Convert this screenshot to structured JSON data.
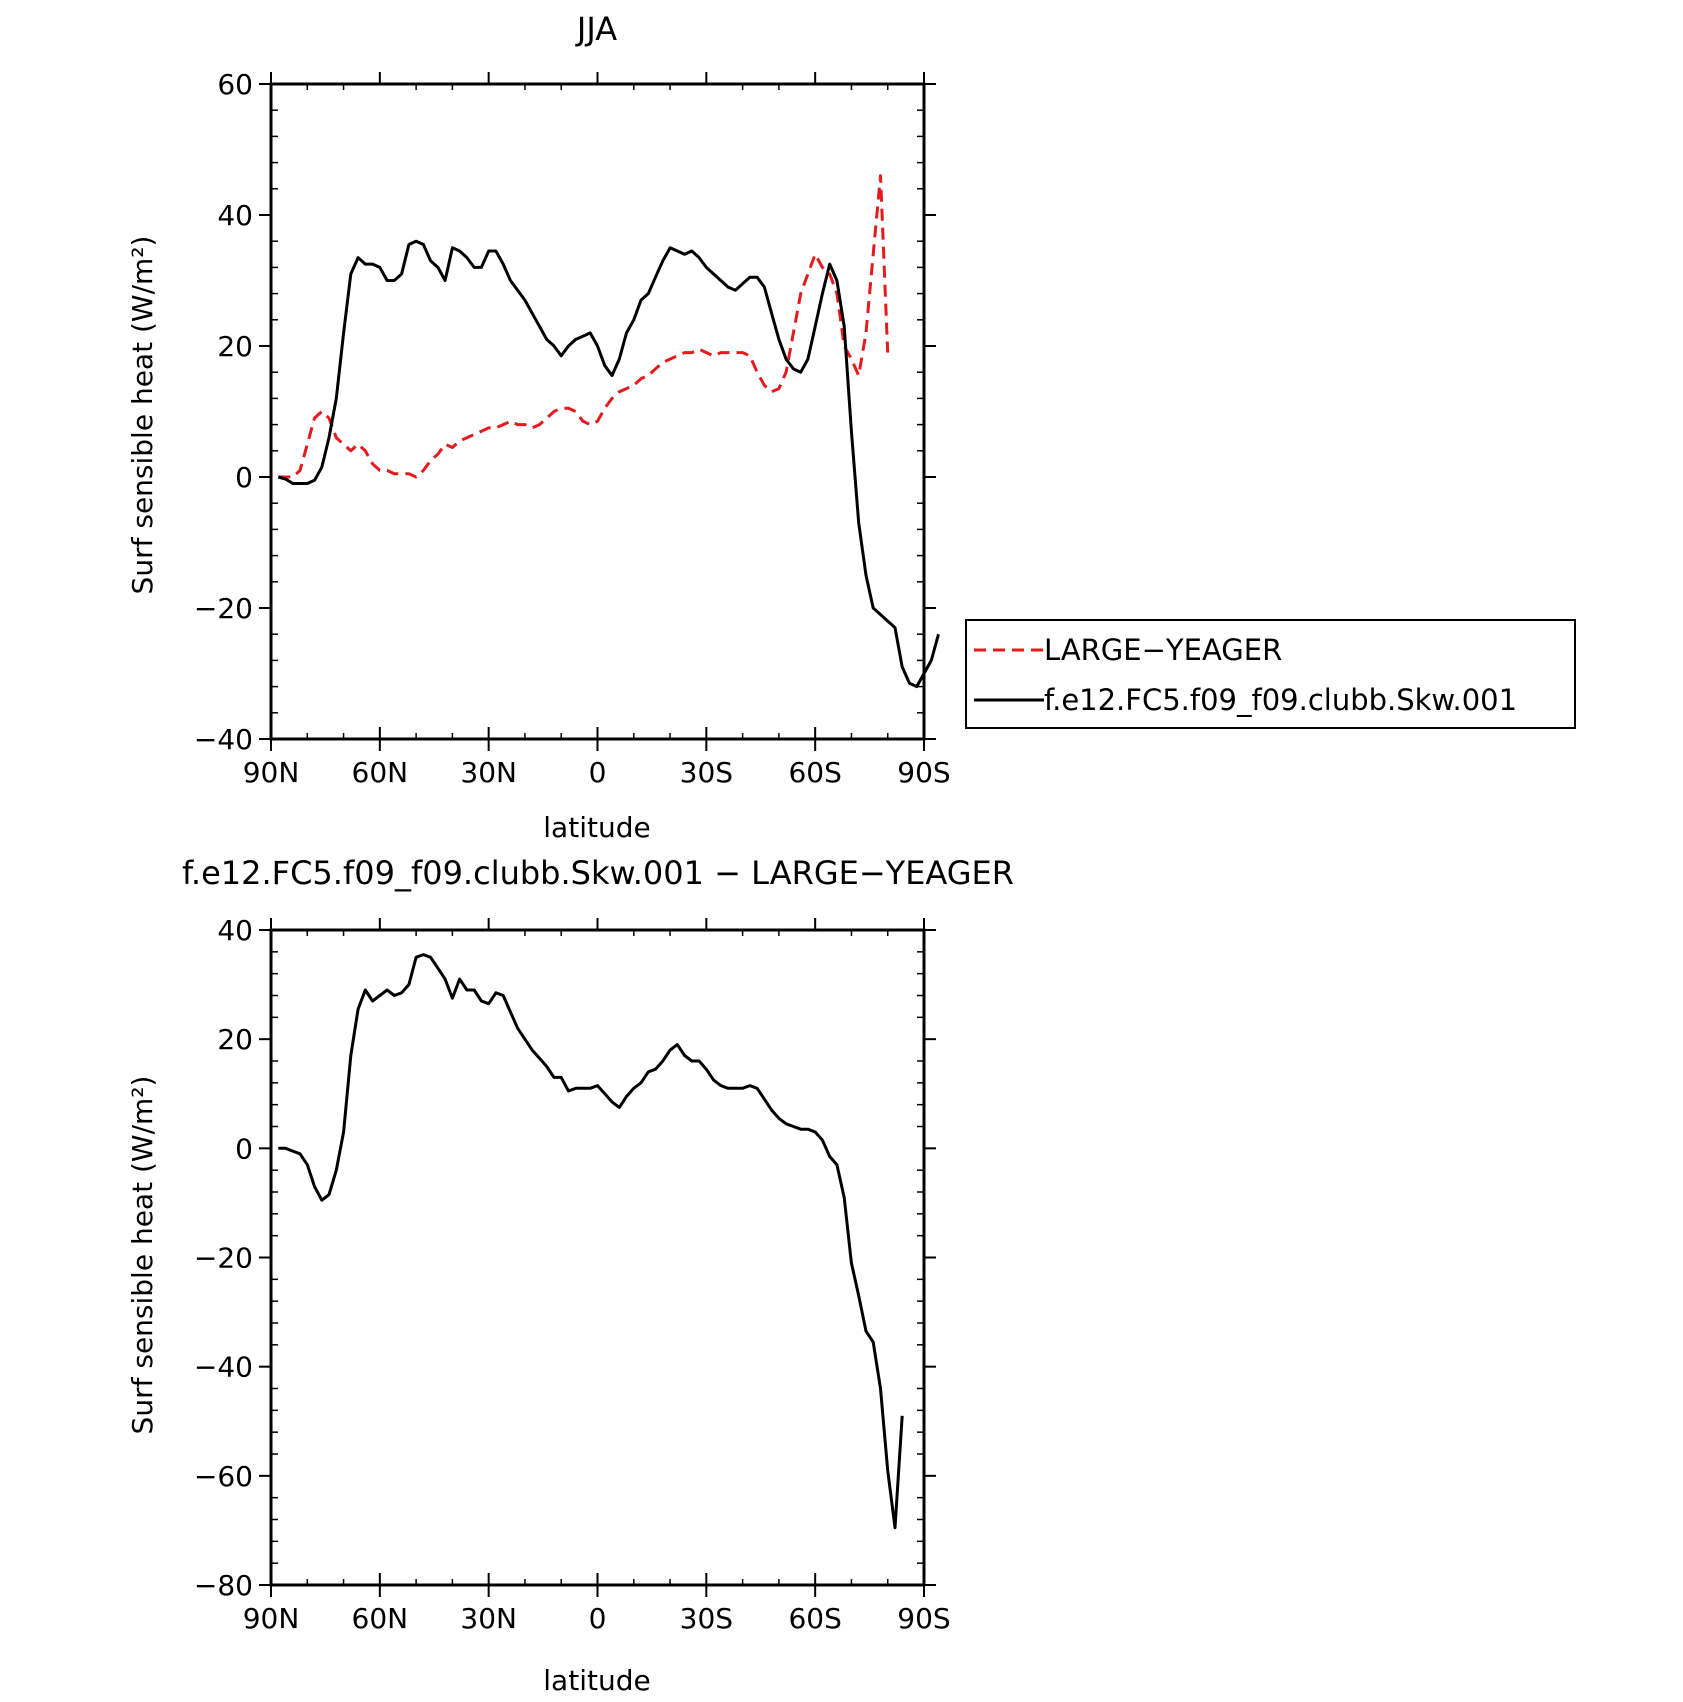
{
  "chart_data": [
    {
      "type": "line",
      "title": "JJA",
      "xlabel": "latitude",
      "ylabel": "Surf sensible heat (W/m²)",
      "xlim": [
        90,
        -90
      ],
      "ylim": [
        -40,
        60
      ],
      "xticks": [
        90,
        60,
        30,
        0,
        -30,
        -60,
        -90
      ],
      "xtick_labels": [
        "90N",
        "60N",
        "30N",
        "0",
        "30S",
        "60S",
        "90S"
      ],
      "yticks": [
        -40,
        -20,
        0,
        20,
        40,
        60
      ],
      "ytick_labels": [
        "−40",
        "−20",
        "0",
        "20",
        "40",
        "60"
      ],
      "grid": false,
      "legend_position": "right",
      "series": [
        {
          "name": "LARGE−YEAGER",
          "color": "#e41a1c",
          "dash": true,
          "points": [
            [
              88,
              0
            ],
            [
              86,
              0
            ],
            [
              84,
              0
            ],
            [
              82,
              1
            ],
            [
              80,
              5
            ],
            [
              78,
              9
            ],
            [
              76,
              10
            ],
            [
              74,
              9
            ],
            [
              72,
              6
            ],
            [
              70,
              5
            ],
            [
              68,
              4
            ],
            [
              66,
              5
            ],
            [
              64,
              4
            ],
            [
              62,
              2
            ],
            [
              60,
              1
            ],
            [
              58,
              1
            ],
            [
              56,
              0.5
            ],
            [
              54,
              0.5
            ],
            [
              52,
              0.5
            ],
            [
              50,
              0
            ],
            [
              48,
              1
            ],
            [
              46,
              2.5
            ],
            [
              44,
              3.5
            ],
            [
              42,
              5
            ],
            [
              40,
              4.5
            ],
            [
              38,
              5.5
            ],
            [
              36,
              6
            ],
            [
              34,
              6.5
            ],
            [
              32,
              7
            ],
            [
              30,
              7.5
            ],
            [
              28,
              7.5
            ],
            [
              26,
              8
            ],
            [
              24,
              8.5
            ],
            [
              22,
              8
            ],
            [
              20,
              8
            ],
            [
              18,
              7.5
            ],
            [
              16,
              8
            ],
            [
              14,
              9
            ],
            [
              12,
              10
            ],
            [
              10,
              10.5
            ],
            [
              8,
              10.5
            ],
            [
              6,
              10
            ],
            [
              4,
              8.5
            ],
            [
              2,
              8
            ],
            [
              0,
              8.5
            ],
            [
              -2,
              10.5
            ],
            [
              -4,
              12
            ],
            [
              -6,
              13
            ],
            [
              -8,
              13.5
            ],
            [
              -10,
              14
            ],
            [
              -12,
              15
            ],
            [
              -14,
              15.5
            ],
            [
              -16,
              16.5
            ],
            [
              -18,
              17.5
            ],
            [
              -20,
              18
            ],
            [
              -22,
              18.5
            ],
            [
              -24,
              19
            ],
            [
              -26,
              19
            ],
            [
              -28,
              19.5
            ],
            [
              -30,
              19
            ],
            [
              -32,
              18.5
            ],
            [
              -34,
              19
            ],
            [
              -36,
              19
            ],
            [
              -38,
              19
            ],
            [
              -40,
              19
            ],
            [
              -42,
              18.5
            ],
            [
              -44,
              16
            ],
            [
              -46,
              14
            ],
            [
              -48,
              13
            ],
            [
              -50,
              13.5
            ],
            [
              -52,
              16
            ],
            [
              -54,
              22
            ],
            [
              -56,
              28
            ],
            [
              -58,
              31
            ],
            [
              -60,
              34
            ],
            [
              -62,
              32
            ],
            [
              -64,
              31
            ],
            [
              -66,
              28
            ],
            [
              -68,
              20
            ],
            [
              -70,
              18
            ],
            [
              -72,
              15.5
            ],
            [
              -74,
              22
            ],
            [
              -76,
              34
            ],
            [
              -78,
              46
            ],
            [
              -80,
              19
            ]
          ]
        },
        {
          "name": "f.e12.FC5.f09_f09.clubb.Skw.001",
          "color": "#000000",
          "dash": false,
          "points": [
            [
              88,
              0
            ],
            [
              86,
              -0.3
            ],
            [
              84,
              -1
            ],
            [
              82,
              -1
            ],
            [
              80,
              -1
            ],
            [
              78,
              -0.5
            ],
            [
              76,
              1.5
            ],
            [
              74,
              6
            ],
            [
              72,
              12
            ],
            [
              70,
              22
            ],
            [
              68,
              31
            ],
            [
              66,
              33.5
            ],
            [
              64,
              32.5
            ],
            [
              62,
              32.5
            ],
            [
              60,
              32
            ],
            [
              58,
              30
            ],
            [
              56,
              30
            ],
            [
              54,
              31
            ],
            [
              52,
              35.5
            ],
            [
              50,
              36
            ],
            [
              48,
              35.5
            ],
            [
              46,
              33
            ],
            [
              44,
              32
            ],
            [
              42,
              30
            ],
            [
              40,
              35
            ],
            [
              38,
              34.5
            ],
            [
              36,
              33.5
            ],
            [
              34,
              32
            ],
            [
              32,
              32
            ],
            [
              30,
              34.5
            ],
            [
              28,
              34.5
            ],
            [
              26,
              32.5
            ],
            [
              24,
              30
            ],
            [
              22,
              28.5
            ],
            [
              20,
              27
            ],
            [
              18,
              25
            ],
            [
              16,
              23
            ],
            [
              14,
              21
            ],
            [
              12,
              20
            ],
            [
              10,
              18.5
            ],
            [
              8,
              20
            ],
            [
              6,
              21
            ],
            [
              4,
              21.5
            ],
            [
              2,
              22
            ],
            [
              0,
              20
            ],
            [
              -2,
              17
            ],
            [
              -4,
              15.5
            ],
            [
              -6,
              18
            ],
            [
              -8,
              22
            ],
            [
              -10,
              24
            ],
            [
              -12,
              27
            ],
            [
              -14,
              28
            ],
            [
              -16,
              30.5
            ],
            [
              -18,
              33
            ],
            [
              -20,
              35
            ],
            [
              -22,
              34.5
            ],
            [
              -24,
              34
            ],
            [
              -26,
              34.5
            ],
            [
              -28,
              33.5
            ],
            [
              -30,
              32
            ],
            [
              -32,
              31
            ],
            [
              -34,
              30
            ],
            [
              -36,
              29
            ],
            [
              -38,
              28.5
            ],
            [
              -40,
              29.5
            ],
            [
              -42,
              30.5
            ],
            [
              -44,
              30.5
            ],
            [
              -46,
              29
            ],
            [
              -48,
              25
            ],
            [
              -50,
              21
            ],
            [
              -52,
              18
            ],
            [
              -54,
              16.5
            ],
            [
              -56,
              16
            ],
            [
              -58,
              18
            ],
            [
              -60,
              23
            ],
            [
              -62,
              28
            ],
            [
              -64,
              32.5
            ],
            [
              -66,
              30
            ],
            [
              -68,
              23
            ],
            [
              -70,
              7
            ],
            [
              -72,
              -7
            ],
            [
              -74,
              -15
            ],
            [
              -76,
              -20
            ],
            [
              -78,
              -21
            ],
            [
              -80,
              -22
            ],
            [
              -82,
              -23
            ],
            [
              -84,
              -29
            ],
            [
              -86,
              -31.5
            ],
            [
              -88,
              -32
            ],
            [
              -90,
              -30
            ],
            [
              -92,
              -28
            ],
            [
              -94,
              -24
            ]
          ]
        }
      ]
    },
    {
      "type": "line",
      "title": "f.e12.FC5.f09_f09.clubb.Skw.001 − LARGE−YEAGER",
      "xlabel": "latitude",
      "ylabel": "Surf sensible heat (W/m²)",
      "xlim": [
        90,
        -90
      ],
      "ylim": [
        -80,
        40
      ],
      "xticks": [
        90,
        60,
        30,
        0,
        -30,
        -60,
        -90
      ],
      "xtick_labels": [
        "90N",
        "60N",
        "30N",
        "0",
        "30S",
        "60S",
        "90S"
      ],
      "yticks": [
        -80,
        -60,
        -40,
        -20,
        0,
        20,
        40
      ],
      "ytick_labels": [
        "−80",
        "−60",
        "−40",
        "−20",
        "0",
        "20",
        "40"
      ],
      "grid": false,
      "series": [
        {
          "color": "#000000",
          "dash": false,
          "points": [
            [
              88,
              0
            ],
            [
              86,
              0
            ],
            [
              84,
              -0.5
            ],
            [
              82,
              -1
            ],
            [
              80,
              -3
            ],
            [
              78,
              -7
            ],
            [
              76,
              -9.5
            ],
            [
              74,
              -8.5
            ],
            [
              72,
              -4
            ],
            [
              70,
              3
            ],
            [
              68,
              17
            ],
            [
              66,
              25.5
            ],
            [
              64,
              29
            ],
            [
              62,
              27
            ],
            [
              60,
              28
            ],
            [
              58,
              29
            ],
            [
              56,
              28
            ],
            [
              54,
              28.5
            ],
            [
              52,
              30
            ],
            [
              50,
              35
            ],
            [
              48,
              35.5
            ],
            [
              46,
              35
            ],
            [
              44,
              33
            ],
            [
              42,
              31
            ],
            [
              40,
              27.5
            ],
            [
              38,
              31
            ],
            [
              36,
              29
            ],
            [
              34,
              29
            ],
            [
              32,
              27
            ],
            [
              30,
              26.5
            ],
            [
              28,
              28.5
            ],
            [
              26,
              28
            ],
            [
              24,
              25
            ],
            [
              22,
              22
            ],
            [
              20,
              20
            ],
            [
              18,
              18
            ],
            [
              16,
              16.5
            ],
            [
              14,
              15
            ],
            [
              12,
              13
            ],
            [
              10,
              13
            ],
            [
              8,
              10.5
            ],
            [
              6,
              11
            ],
            [
              4,
              11
            ],
            [
              2,
              11
            ],
            [
              0,
              11.5
            ],
            [
              -2,
              10
            ],
            [
              -4,
              8.5
            ],
            [
              -6,
              7.5
            ],
            [
              -8,
              9.5
            ],
            [
              -10,
              11
            ],
            [
              -12,
              12
            ],
            [
              -14,
              14
            ],
            [
              -16,
              14.5
            ],
            [
              -18,
              16
            ],
            [
              -20,
              18
            ],
            [
              -22,
              19
            ],
            [
              -24,
              17
            ],
            [
              -26,
              16
            ],
            [
              -28,
              16
            ],
            [
              -30,
              14.5
            ],
            [
              -32,
              12.5
            ],
            [
              -34,
              11.5
            ],
            [
              -36,
              11
            ],
            [
              -38,
              11
            ],
            [
              -40,
              11
            ],
            [
              -42,
              11.5
            ],
            [
              -44,
              11
            ],
            [
              -46,
              9
            ],
            [
              -48,
              7
            ],
            [
              -50,
              5.5
            ],
            [
              -52,
              4.5
            ],
            [
              -54,
              4
            ],
            [
              -56,
              3.5
            ],
            [
              -58,
              3.5
            ],
            [
              -60,
              3
            ],
            [
              -62,
              1.5
            ],
            [
              -64,
              -1.5
            ],
            [
              -66,
              -3
            ],
            [
              -68,
              -9
            ],
            [
              -70,
              -21
            ],
            [
              -72,
              -27
            ],
            [
              -74,
              -33.5
            ],
            [
              -76,
              -35.5
            ],
            [
              -78,
              -44
            ],
            [
              -80,
              -59
            ],
            [
              -82,
              -69.5
            ],
            [
              -84,
              -49
            ]
          ]
        }
      ]
    }
  ]
}
